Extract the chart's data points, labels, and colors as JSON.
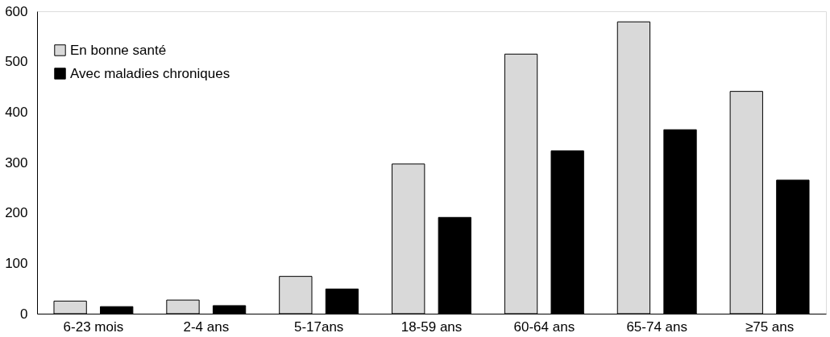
{
  "chart_data": {
    "type": "bar",
    "categories": [
      "6-23 mois",
      "2-4 ans",
      "5-17ans",
      "18-59 ans",
      "60-64 ans",
      "65-74 ans",
      "≥75 ans"
    ],
    "series": [
      {
        "name": "En bonne santé",
        "color": "#d9d9d9",
        "values": [
          25,
          27,
          74,
          297,
          515,
          579,
          441
        ]
      },
      {
        "name": "Avec maladies chroniques",
        "color": "#000000",
        "values": [
          14,
          16,
          49,
          191,
          323,
          365,
          265
        ]
      }
    ],
    "ylim": [
      0,
      600
    ],
    "yticks": [
      0,
      100,
      200,
      300,
      400,
      500,
      600
    ],
    "grid": false,
    "legend": "top left"
  }
}
